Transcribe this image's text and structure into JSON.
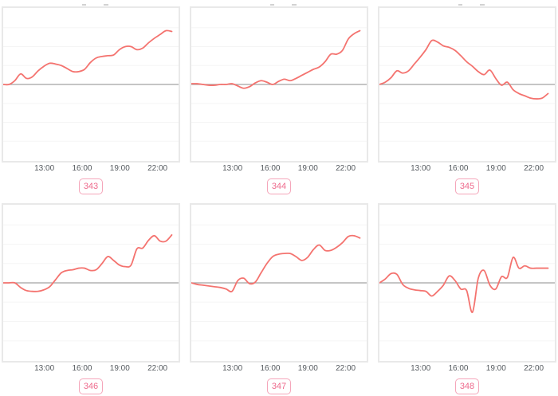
{
  "page": {
    "background": "#ffffff",
    "description": "Grid of six unlabeled sparkline time-series charts with numbered badges"
  },
  "styles": {
    "line_color": "#f4736f",
    "zero_line_color": "#a2a2a2",
    "grid_color": "#f5f5f5",
    "panel_border_color": "#e9e9e9",
    "tick_color": "#555a5f",
    "badge_text_color": "#ee6b8d",
    "badge_border_color": "#f5a6ba"
  },
  "x_axis": {
    "start_hour": 9.6,
    "end_hour": 23.8,
    "tick_hours": [
      13,
      16,
      19,
      22
    ],
    "tick_labels": [
      "13:00",
      "16:00",
      "19:00",
      "22:00"
    ]
  },
  "chart_data": [
    {
      "type": "line",
      "label": "343",
      "x_start_hour": 9.6,
      "x_end_hour": 23.25,
      "ylim": [
        -100,
        100
      ],
      "baseline": 0,
      "grid": "horizontal-faint",
      "values": [
        0,
        0,
        5,
        14,
        8,
        10,
        18,
        24,
        28,
        27,
        25,
        21,
        17,
        17,
        20,
        29,
        35,
        37,
        38,
        39,
        46,
        50,
        50,
        46,
        48,
        55,
        61,
        66,
        71,
        70
      ]
    },
    {
      "type": "line",
      "label": "344",
      "x_start_hour": 9.6,
      "x_end_hour": 23.25,
      "ylim": [
        -100,
        100
      ],
      "baseline": 0,
      "grid": "horizontal-faint",
      "values": [
        1,
        1,
        0,
        -1,
        -1,
        0,
        0,
        1,
        -2,
        -5,
        -3,
        2,
        5,
        3,
        0,
        4,
        7,
        5,
        8,
        12,
        16,
        20,
        23,
        30,
        40,
        40,
        45,
        60,
        67,
        71
      ]
    },
    {
      "type": "line",
      "label": "345",
      "x_start_hour": 9.6,
      "x_end_hour": 23.25,
      "ylim": [
        -100,
        100
      ],
      "baseline": 0,
      "grid": "horizontal-faint",
      "values": [
        0,
        3,
        9,
        18,
        15,
        18,
        27,
        36,
        46,
        58,
        56,
        51,
        49,
        45,
        38,
        30,
        24,
        17,
        13,
        19,
        8,
        -1,
        3,
        -7,
        -12,
        -15,
        -18,
        -19,
        -18,
        -12
      ]
    },
    {
      "type": "line",
      "label": "346",
      "x_start_hour": 9.6,
      "x_end_hour": 23.25,
      "ylim": [
        -100,
        100
      ],
      "baseline": 0,
      "grid": "horizontal-faint",
      "values": [
        0,
        0,
        0,
        -6,
        -10,
        -11,
        -11,
        -9,
        -5,
        4,
        13,
        16,
        17,
        19,
        19,
        16,
        17,
        25,
        34,
        29,
        23,
        21,
        23,
        44,
        45,
        55,
        61,
        54,
        54,
        62
      ]
    },
    {
      "type": "line",
      "label": "347",
      "x_start_hour": 9.6,
      "x_end_hour": 23.25,
      "ylim": [
        -100,
        100
      ],
      "baseline": 0,
      "grid": "horizontal-faint",
      "values": [
        0,
        -2,
        -3,
        -4,
        -5,
        -6,
        -8,
        -11,
        3,
        6,
        -1,
        1,
        13,
        25,
        34,
        37,
        38,
        38,
        34,
        29,
        33,
        43,
        49,
        42,
        42,
        46,
        52,
        60,
        61,
        58
      ]
    },
    {
      "type": "line",
      "label": "348",
      "x_start_hour": 9.6,
      "x_end_hour": 23.25,
      "ylim": [
        -100,
        100
      ],
      "baseline": 0,
      "grid": "horizontal-faint",
      "values": [
        0,
        5,
        12,
        11,
        -2,
        -7,
        -9,
        -10,
        -11,
        -17,
        -11,
        -3,
        9,
        3,
        -8,
        -10,
        -38,
        6,
        16,
        -3,
        -8,
        8,
        7,
        33,
        19,
        22,
        19,
        19,
        19,
        19
      ]
    }
  ]
}
